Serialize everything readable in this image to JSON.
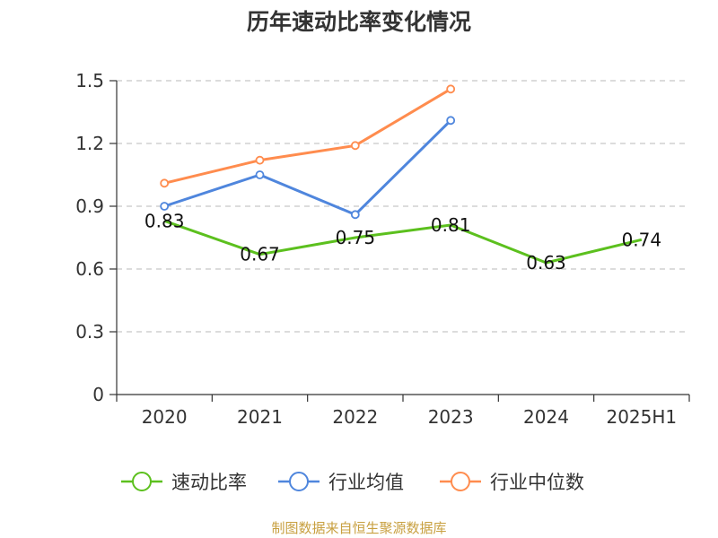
{
  "chart_data": {
    "type": "line",
    "title": "历年速动比率变化情况",
    "categories": [
      "2020",
      "2021",
      "2022",
      "2023",
      "2024",
      "2025H1"
    ],
    "ylim": [
      0,
      1.5
    ],
    "yticks": [
      "0",
      "0.3",
      "0.6",
      "0.9",
      "1.2",
      "1.5"
    ],
    "grid": true,
    "legend_position": "bottom",
    "series": [
      {
        "name": "速动比率",
        "color": "#5cc01e",
        "values": [
          0.83,
          0.67,
          0.75,
          0.81,
          0.63,
          0.74
        ],
        "labels": [
          "0.83",
          "0.67",
          "0.75",
          "0.81",
          "0.63",
          "0.74"
        ],
        "show_labels": true,
        "markers": false
      },
      {
        "name": "行业均值",
        "color": "#4f86dd",
        "values": [
          0.9,
          1.05,
          0.86,
          1.31,
          null,
          null
        ],
        "show_labels": false,
        "markers": true
      },
      {
        "name": "行业中位数",
        "color": "#ff8c4e",
        "values": [
          1.01,
          1.12,
          1.19,
          1.46,
          null,
          null
        ],
        "show_labels": false,
        "markers": true
      }
    ]
  },
  "source": "制图数据来自恒生聚源数据库"
}
